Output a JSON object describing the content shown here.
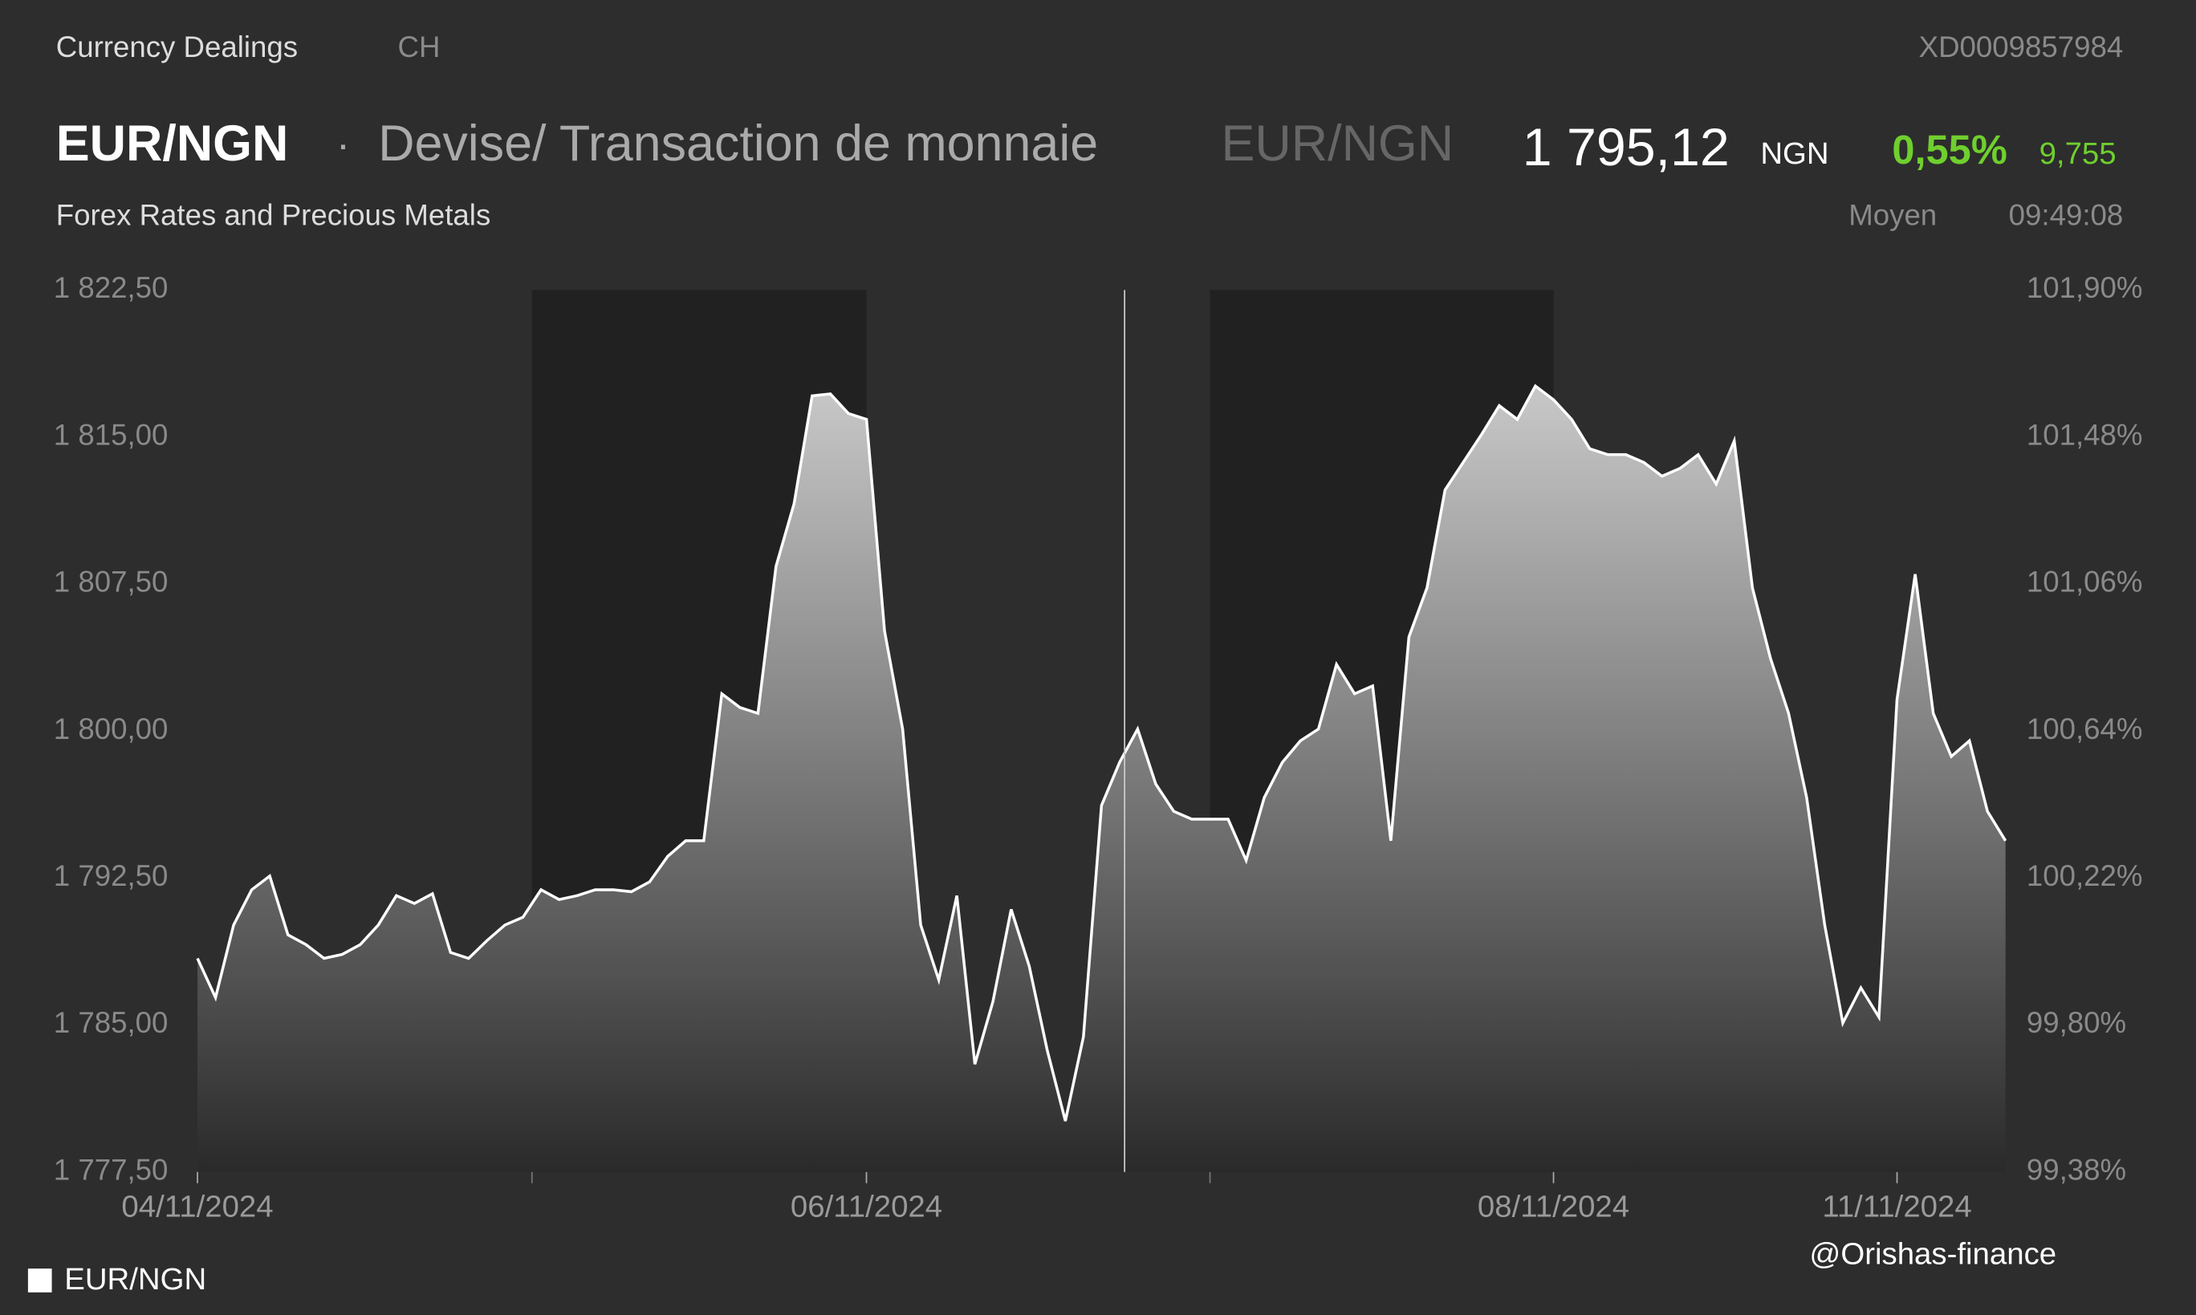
{
  "header": {
    "section": "Currency Dealings",
    "country": "CH",
    "isin": "XD0009857984",
    "symbol": "EUR/NGN",
    "separator": "·",
    "description": "Devise/ Transaction de monnaie",
    "symbol_secondary": "EUR/NGN",
    "price": "1 795,12",
    "currency": "NGN",
    "change_percent": "0,55%",
    "change": "9,755",
    "subtitle": "Forex Rates and Precious Metals",
    "price_type": "Moyen",
    "time": "09:49:08"
  },
  "watermark": "@Orishas-finance",
  "chart_data": {
    "type": "area",
    "legend": "bottom-left",
    "categories": [
      "04/11/2024",
      null,
      null,
      null,
      null,
      null,
      null,
      null,
      null,
      null,
      null,
      null,
      null,
      null,
      null,
      null,
      null,
      null,
      null,
      null,
      null,
      null,
      null,
      null,
      null,
      null,
      null,
      null,
      null,
      null,
      null,
      null,
      null,
      null,
      null,
      null,
      null,
      "06/11/2024",
      null,
      null,
      null,
      null,
      null,
      null,
      null,
      null,
      null,
      null,
      null,
      null,
      null,
      null,
      null,
      null,
      null,
      null,
      null,
      null,
      null,
      null,
      null,
      null,
      null,
      null,
      null,
      null,
      null,
      null,
      null,
      null,
      null,
      null,
      null,
      null,
      null,
      "08/11/2024",
      null,
      null,
      null,
      null,
      null,
      null,
      null,
      null,
      null,
      null,
      null,
      null,
      null,
      null,
      null,
      null,
      null,
      null,
      "11/11/2024",
      null,
      null,
      null,
      null,
      null,
      null
    ],
    "series": [
      {
        "name": "EUR/NGN",
        "color": "#ffffff",
        "values": [
          1788.4,
          1786.4,
          1790.1,
          1791.9,
          1792.6,
          1789.6,
          1789.1,
          1788.4,
          1788.6,
          1789.1,
          1790.1,
          1791.6,
          1791.2,
          1791.7,
          1788.7,
          1788.4,
          1789.3,
          1790.1,
          1790.5,
          1791.9,
          1791.4,
          1791.6,
          1791.9,
          1791.9,
          1791.8,
          1792.3,
          1793.6,
          1794.4,
          1794.4,
          1801.9,
          1801.2,
          1800.9,
          1808.4,
          1811.6,
          1817.1,
          1817.2,
          1816.2,
          1815.9,
          1805.1,
          1800.1,
          1790.1,
          1787.3,
          1791.6,
          1783.0,
          1786.2,
          1790.9,
          1788.0,
          1783.7,
          1780.1,
          1784.4,
          1796.2,
          1798.4,
          1800.1,
          1797.3,
          1795.9,
          1795.5,
          1795.5,
          1795.5,
          1793.4,
          1796.6,
          1798.4,
          1799.5,
          1800.1,
          1803.4,
          1801.9,
          1802.3,
          1794.4,
          1804.8,
          1807.3,
          1812.3,
          1813.7,
          1815.1,
          1816.6,
          1815.9,
          1817.6,
          1816.9,
          1815.9,
          1814.4,
          1814.1,
          1814.1,
          1813.7,
          1813.0,
          1813.4,
          1814.1,
          1812.6,
          1814.8,
          1807.3,
          1803.7,
          1800.9,
          1796.6,
          1790.1,
          1785.1,
          1786.9,
          1785.4,
          1801.6,
          1808.0,
          1800.9,
          1798.7,
          1799.5,
          1795.9,
          1794.4
        ]
      }
    ],
    "ylim": [
      1777.5,
      1822.5
    ],
    "yticks": [
      {
        "value": 1777.5,
        "label": "1 777,50"
      },
      {
        "value": 1785,
        "label": "1 785,00"
      },
      {
        "value": 1792.5,
        "label": "1 792,50"
      },
      {
        "value": 1800,
        "label": "1 800,00"
      },
      {
        "value": 1807.5,
        "label": "1 807,50"
      },
      {
        "value": 1815,
        "label": "1 815,00"
      },
      {
        "value": 1822.5,
        "label": "1 822,50"
      }
    ],
    "y2lim": [
      99.38,
      101.9
    ],
    "y2ticks": [
      {
        "value": 99.38,
        "label": "99,38%"
      },
      {
        "value": 99.8,
        "label": "99,80%"
      },
      {
        "value": 100.22,
        "label": "100,22%"
      },
      {
        "value": 100.64,
        "label": "100,64%"
      },
      {
        "value": 101.06,
        "label": "101,06%"
      },
      {
        "value": 101.48,
        "label": "101,48%"
      },
      {
        "value": 101.9,
        "label": "101,90%"
      }
    ]
  }
}
